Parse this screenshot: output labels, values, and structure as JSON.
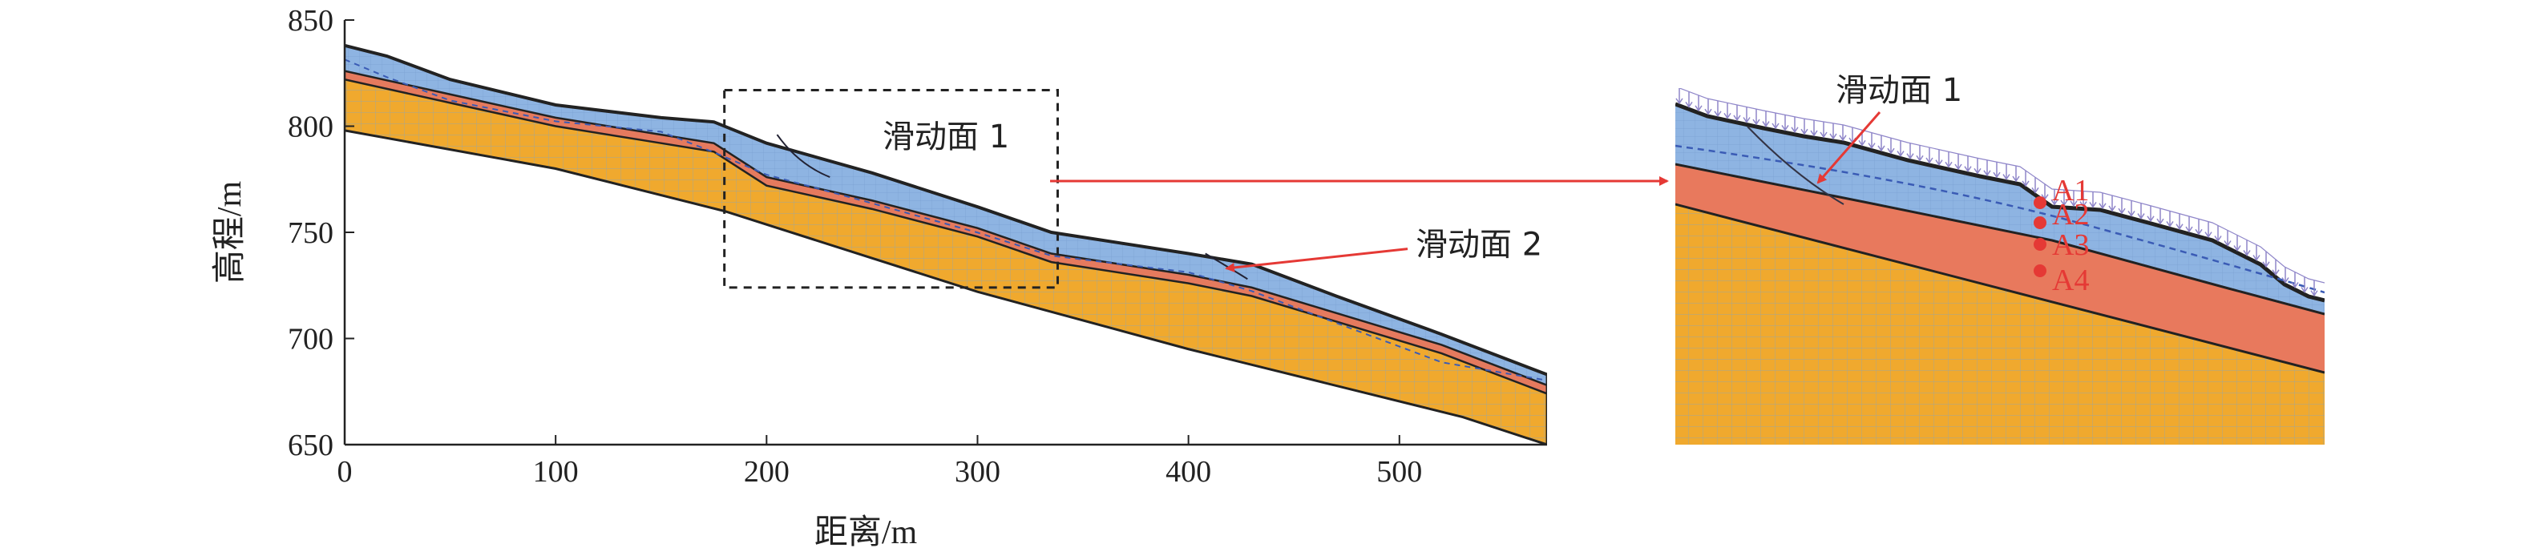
{
  "chart_data": [
    {
      "type": "area",
      "title": "",
      "xlabel": "距离/m",
      "ylabel": "高程/m",
      "xlim": [
        0,
        570
      ],
      "ylim": [
        650,
        850
      ],
      "xticks": [
        0,
        100,
        200,
        300,
        400,
        500
      ],
      "yticks": [
        650,
        700,
        750,
        800,
        850
      ],
      "grid": false,
      "series": [
        {
          "layer": "surface",
          "color": "#8eb4e2",
          "x": [
            0,
            20,
            50,
            100,
            150,
            175,
            200,
            250,
            300,
            335,
            400,
            430,
            470,
            520,
            570
          ],
          "y": [
            838,
            833,
            822,
            810,
            804,
            802,
            792,
            778,
            762,
            750,
            740,
            735,
            720,
            702,
            683
          ]
        },
        {
          "layer": "clay-interface",
          "color": "#e57a5e",
          "x": [
            0,
            50,
            100,
            150,
            175,
            200,
            250,
            300,
            335,
            400,
            430,
            470,
            520,
            570
          ],
          "y": [
            826,
            815,
            804,
            796,
            792,
            776,
            765,
            752,
            740,
            730,
            724,
            712,
            697,
            678
          ]
        },
        {
          "layer": "bedrock-top",
          "color": "#f0a92e",
          "x": [
            0,
            50,
            100,
            150,
            175,
            200,
            250,
            300,
            335,
            400,
            430,
            470,
            520,
            570
          ],
          "y": [
            822,
            811,
            800,
            792,
            788,
            772,
            761,
            748,
            736,
            726,
            720,
            708,
            693,
            674
          ]
        },
        {
          "layer": "bottom",
          "color": "#000000",
          "x": [
            0,
            100,
            180,
            300,
            400,
            530,
            570
          ],
          "y": [
            798,
            780,
            760,
            722,
            695,
            663,
            650
          ]
        }
      ],
      "annotations": [
        {
          "text": "滑动面 1",
          "x": 255,
          "y": 790
        },
        {
          "text": "滑动面 2",
          "x": 445,
          "y": 749
        }
      ],
      "zoom_box": {
        "x": [
          180,
          338
        ],
        "y": [
          724,
          817
        ]
      }
    },
    {
      "type": "scatter",
      "title": "",
      "annotations": [
        {
          "text": "滑动面 1"
        }
      ],
      "points": [
        {
          "label": "A1",
          "color": "#e53935"
        },
        {
          "label": "A2",
          "color": "#e53935"
        },
        {
          "label": "A3",
          "color": "#e53935"
        },
        {
          "label": "A4",
          "color": "#e53935"
        }
      ]
    }
  ]
}
